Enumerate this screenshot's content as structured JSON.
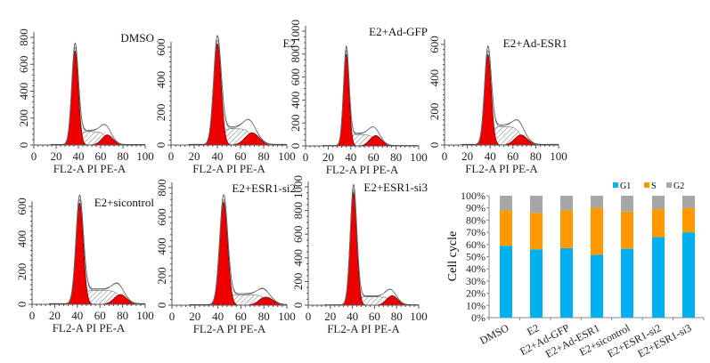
{
  "chart_data": [
    {
      "type": "area",
      "title": "DMSO",
      "xlabel": "FL2-A PI PE-A",
      "xlim": [
        0,
        100
      ],
      "ylim": [
        0,
        800
      ],
      "xticks": [
        0,
        20,
        40,
        60,
        80,
        100
      ],
      "yticks": [
        0,
        200,
        400,
        600,
        800
      ],
      "g1": {
        "mean": 37,
        "peak": 700,
        "sd": 3
      },
      "g2": {
        "mean": 66,
        "peak": 75,
        "sd": 5
      },
      "s_level": 100
    },
    {
      "type": "area",
      "title": "E2",
      "xlabel": "FL2-A PI PE-A",
      "xlim": [
        0,
        100
      ],
      "ylim": [
        0,
        600
      ],
      "xticks": [
        0,
        20,
        40,
        60,
        80,
        100
      ],
      "yticks": [
        0,
        200,
        400,
        600
      ],
      "g1": {
        "mean": 40,
        "peak": 620,
        "sd": 3.3
      },
      "g2": {
        "mean": 70,
        "peak": 75,
        "sd": 6
      },
      "s_level": 100
    },
    {
      "type": "area",
      "title": "E2+Ad-GFP",
      "xlabel": "FL2-A PI PE-A",
      "xlim": [
        0,
        100
      ],
      "ylim": [
        0,
        1000
      ],
      "xticks": [
        0,
        20,
        40,
        60,
        80,
        100
      ],
      "yticks": [
        0,
        200,
        400,
        600,
        800,
        1000
      ],
      "g1": {
        "mean": 36,
        "peak": 800,
        "sd": 2.5
      },
      "g2": {
        "mean": 62,
        "peak": 90,
        "sd": 5
      },
      "s_level": 100
    },
    {
      "type": "area",
      "title": "E2+Ad-ESR1",
      "xlabel": "FL2-A PI PE-A",
      "xlim": [
        0,
        100
      ],
      "ylim": [
        0,
        600
      ],
      "xticks": [
        0,
        20,
        40,
        60,
        80,
        100
      ],
      "yticks": [
        0,
        200,
        400,
        600
      ],
      "g1": {
        "mean": 38,
        "peak": 540,
        "sd": 3
      },
      "g2": {
        "mean": 67,
        "peak": 60,
        "sd": 5.5
      },
      "s_level": 110
    },
    {
      "type": "area",
      "title": "E2+sicontrol",
      "xlabel": "FL2-A PI PE-A",
      "xlim": [
        0,
        100
      ],
      "ylim": [
        0,
        600
      ],
      "xticks": [
        0,
        20,
        40,
        60,
        80,
        100
      ],
      "yticks": [
        0,
        200,
        400,
        600
      ],
      "g1": {
        "mean": 42,
        "peak": 620,
        "sd": 3.3
      },
      "g2": {
        "mean": 78,
        "peak": 60,
        "sd": 5.5
      },
      "s_level": 85
    },
    {
      "type": "area",
      "title": "E2+ESR1-si2",
      "xlabel": "FL2-A PI PE-A",
      "xlim": [
        0,
        100
      ],
      "ylim": [
        0,
        800
      ],
      "xticks": [
        0,
        20,
        40,
        60,
        80,
        100
      ],
      "yticks": [
        0,
        200,
        400,
        600,
        800
      ],
      "g1": {
        "mean": 45,
        "peak": 700,
        "sd": 3.5
      },
      "g2": {
        "mean": 82,
        "peak": 55,
        "sd": 6
      },
      "s_level": 70
    },
    {
      "type": "area",
      "title": "E2+ESR1-si3",
      "xlabel": "FL2-A PI PE-A",
      "xlim": [
        0,
        100
      ],
      "ylim": [
        0,
        1000
      ],
      "xticks": [
        0,
        20,
        40,
        60,
        80,
        100
      ],
      "yticks": [
        0,
        200,
        400,
        600,
        800,
        1000
      ],
      "g1": {
        "mean": 41,
        "peak": 950,
        "sd": 3
      },
      "g2": {
        "mean": 76,
        "peak": 80,
        "sd": 5
      },
      "s_level": 70
    },
    {
      "type": "bar",
      "stacked": true,
      "ylabel": "Cell cycle",
      "ylim": [
        0,
        100
      ],
      "yticks": [
        "0%",
        "10%",
        "20%",
        "30%",
        "40%",
        "50%",
        "60%",
        "70%",
        "80%",
        "90%",
        "100%"
      ],
      "categories": [
        "DMSO",
        "E2",
        "E2+Ad-GFP",
        "E2+Ad-ESR1",
        "E2+sicontrol",
        "E2+ESR1-si2",
        "E2+ESR1-si3"
      ],
      "legend_position": "top-right",
      "series": [
        {
          "name": "G1",
          "color": "#00b0f0",
          "values": [
            59,
            56,
            57,
            51.5,
            56.5,
            66,
            70
          ]
        },
        {
          "name": "S",
          "color": "#ff9900",
          "values": [
            29,
            30,
            31,
            38.5,
            30.5,
            23,
            20
          ]
        },
        {
          "name": "G2",
          "color": "#a6a6a6",
          "values": [
            12,
            14,
            12,
            10,
            13,
            11,
            10
          ]
        }
      ]
    }
  ]
}
